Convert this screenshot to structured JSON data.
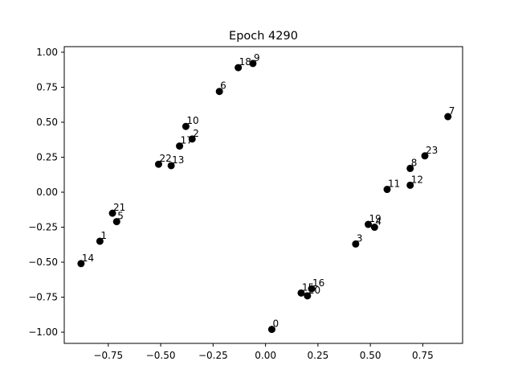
{
  "chart_data": {
    "type": "scatter",
    "title": "Epoch 4290",
    "xlabel": "",
    "ylabel": "",
    "xlim": [
      -0.96,
      0.94
    ],
    "ylim": [
      -1.08,
      1.04
    ],
    "xticks": [
      -0.75,
      -0.5,
      -0.25,
      0.0,
      0.25,
      0.5,
      0.75
    ],
    "xtick_labels": [
      "−0.75",
      "−0.50",
      "−0.25",
      "0.00",
      "0.25",
      "0.50",
      "0.75"
    ],
    "yticks": [
      -1.0,
      -0.75,
      -0.5,
      -0.25,
      0.0,
      0.25,
      0.5,
      0.75,
      1.0
    ],
    "ytick_labels": [
      "−1.00",
      "−0.75",
      "−0.50",
      "−0.25",
      "0.00",
      "0.25",
      "0.50",
      "0.75",
      "1.00"
    ],
    "grid": false,
    "marker_color": "#000000",
    "points": [
      {
        "label": "0",
        "x": 0.03,
        "y": -0.98
      },
      {
        "label": "1",
        "x": -0.79,
        "y": -0.35
      },
      {
        "label": "2",
        "x": -0.35,
        "y": 0.38
      },
      {
        "label": "3",
        "x": 0.43,
        "y": -0.37
      },
      {
        "label": "4",
        "x": 0.52,
        "y": -0.25
      },
      {
        "label": "5",
        "x": -0.71,
        "y": -0.21
      },
      {
        "label": "6",
        "x": -0.22,
        "y": 0.72
      },
      {
        "label": "7",
        "x": 0.87,
        "y": 0.54
      },
      {
        "label": "8",
        "x": 0.69,
        "y": 0.17
      },
      {
        "label": "9",
        "x": -0.06,
        "y": 0.92
      },
      {
        "label": "10",
        "x": -0.38,
        "y": 0.47
      },
      {
        "label": "11",
        "x": 0.58,
        "y": 0.02
      },
      {
        "label": "12",
        "x": 0.69,
        "y": 0.05
      },
      {
        "label": "13",
        "x": -0.45,
        "y": 0.19
      },
      {
        "label": "14",
        "x": -0.88,
        "y": -0.51
      },
      {
        "label": "15",
        "x": 0.17,
        "y": -0.72
      },
      {
        "label": "16",
        "x": 0.22,
        "y": -0.69
      },
      {
        "label": "17",
        "x": -0.41,
        "y": 0.33
      },
      {
        "label": "18",
        "x": -0.13,
        "y": 0.89
      },
      {
        "label": "19",
        "x": 0.49,
        "y": -0.23
      },
      {
        "label": "20",
        "x": 0.2,
        "y": -0.74
      },
      {
        "label": "21",
        "x": -0.73,
        "y": -0.15
      },
      {
        "label": "22",
        "x": -0.51,
        "y": 0.2
      },
      {
        "label": "23",
        "x": 0.76,
        "y": 0.26
      }
    ]
  }
}
